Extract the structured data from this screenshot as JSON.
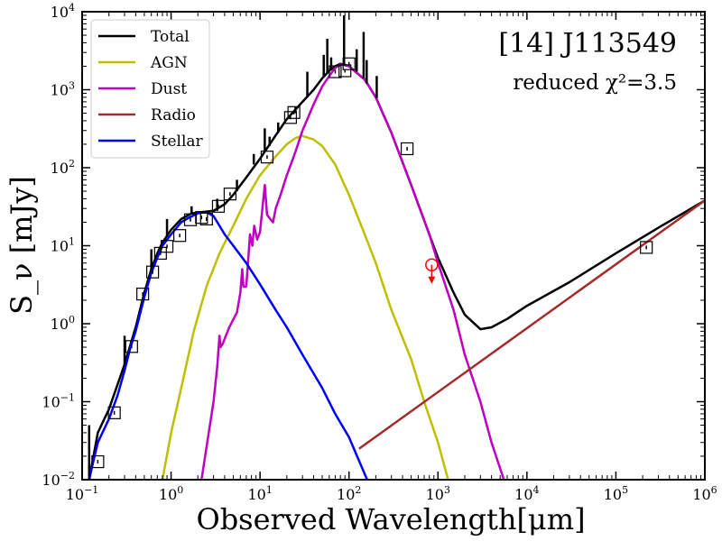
{
  "chart_data": {
    "type": "line",
    "title": "[14] J113549",
    "annotation": "reduced χ²=3.5",
    "xlabel": "Observed Wavelength[μm]",
    "ylabel": "S_ν [mJy]",
    "xscale": "log",
    "yscale": "log",
    "xlim": [
      0.1,
      1000000
    ],
    "ylim": [
      0.01,
      10000
    ],
    "x_ticks": [
      {
        "value": 0.1,
        "mant": "10",
        "exp": "−1"
      },
      {
        "value": 1,
        "mant": "10",
        "exp": "0"
      },
      {
        "value": 10,
        "mant": "10",
        "exp": "1"
      },
      {
        "value": 100,
        "mant": "10",
        "exp": "2"
      },
      {
        "value": 1000,
        "mant": "10",
        "exp": "3"
      },
      {
        "value": 10000,
        "mant": "10",
        "exp": "4"
      },
      {
        "value": 100000,
        "mant": "10",
        "exp": "5"
      },
      {
        "value": 1000000,
        "mant": "10",
        "exp": "6"
      }
    ],
    "y_ticks": [
      {
        "value": 0.01,
        "mant": "10",
        "exp": "−2"
      },
      {
        "value": 0.1,
        "mant": "10",
        "exp": "−1"
      },
      {
        "value": 1,
        "mant": "10",
        "exp": "0"
      },
      {
        "value": 10,
        "mant": "10",
        "exp": "1"
      },
      {
        "value": 100,
        "mant": "10",
        "exp": "2"
      },
      {
        "value": 1000,
        "mant": "10",
        "exp": "3"
      },
      {
        "value": 10000,
        "mant": "10",
        "exp": "4"
      }
    ],
    "legend": [
      {
        "label": "Total",
        "color": "#000000"
      },
      {
        "label": "AGN",
        "color": "#bfbf00"
      },
      {
        "label": "Dust",
        "color": "#bf00bf"
      },
      {
        "label": "Radio",
        "color": "#a52a2a"
      },
      {
        "label": "Stellar",
        "color": "#0000ff"
      }
    ],
    "series": [
      {
        "name": "Total",
        "color": "#000000",
        "points": [
          [
            0.12,
            0.01
          ],
          [
            0.15,
            0.04
          ],
          [
            0.2,
            0.08
          ],
          [
            0.3,
            0.3
          ],
          [
            0.4,
            0.9
          ],
          [
            0.5,
            2.5
          ],
          [
            0.6,
            5
          ],
          [
            0.7,
            8
          ],
          [
            0.8,
            11
          ],
          [
            1.0,
            16
          ],
          [
            1.3,
            22
          ],
          [
            1.7,
            26
          ],
          [
            2.2,
            27
          ],
          [
            3.0,
            28
          ],
          [
            4.0,
            34
          ],
          [
            5.0,
            45
          ],
          [
            7.0,
            75
          ],
          [
            10,
            130
          ],
          [
            15,
            260
          ],
          [
            20,
            420
          ],
          [
            30,
            700
          ],
          [
            40,
            1000
          ],
          [
            50,
            1400
          ],
          [
            60,
            1750
          ],
          [
            70,
            2000
          ],
          [
            80,
            2150
          ],
          [
            100,
            2000
          ],
          [
            150,
            1350
          ],
          [
            200,
            800
          ],
          [
            300,
            280
          ],
          [
            500,
            60
          ],
          [
            800,
            14
          ],
          [
            1000,
            7
          ],
          [
            1500,
            2.5
          ],
          [
            2000,
            1.3
          ],
          [
            3000,
            0.85
          ],
          [
            4000,
            0.9
          ],
          [
            6000,
            1.15
          ],
          [
            10000,
            1.7
          ],
          [
            30000,
            3.4
          ],
          [
            100000,
            8
          ],
          [
            300000,
            17
          ],
          [
            1000000,
            38
          ]
        ]
      },
      {
        "name": "AGN",
        "color": "#bfbf00",
        "points": [
          [
            0.8,
            0.01
          ],
          [
            1.0,
            0.04
          ],
          [
            1.3,
            0.15
          ],
          [
            1.8,
            0.8
          ],
          [
            2.5,
            3
          ],
          [
            3.5,
            8
          ],
          [
            5.0,
            18
          ],
          [
            7.0,
            40
          ],
          [
            10,
            80
          ],
          [
            15,
            140
          ],
          [
            20,
            200
          ],
          [
            25,
            240
          ],
          [
            30,
            255
          ],
          [
            40,
            230
          ],
          [
            50,
            190
          ],
          [
            70,
            110
          ],
          [
            100,
            45
          ],
          [
            150,
            14
          ],
          [
            200,
            6
          ],
          [
            300,
            1.5
          ],
          [
            500,
            0.35
          ],
          [
            700,
            0.1
          ],
          [
            1000,
            0.03
          ],
          [
            1300,
            0.01
          ]
        ]
      },
      {
        "name": "Dust",
        "color": "#bf00bf",
        "points": [
          [
            2.2,
            0.01
          ],
          [
            3.0,
            0.1
          ],
          [
            3.3,
            0.28
          ],
          [
            3.5,
            0.7
          ],
          [
            3.6,
            0.5
          ],
          [
            3.8,
            0.55
          ],
          [
            4.5,
            0.9
          ],
          [
            5.5,
            1.4
          ],
          [
            6.0,
            2.5
          ],
          [
            6.3,
            5
          ],
          [
            6.5,
            3
          ],
          [
            7.0,
            3
          ],
          [
            7.7,
            14
          ],
          [
            8.2,
            10
          ],
          [
            8.6,
            18
          ],
          [
            9.3,
            12
          ],
          [
            10,
            15
          ],
          [
            11.3,
            60
          ],
          [
            12,
            25
          ],
          [
            13,
            22
          ],
          [
            14,
            20
          ],
          [
            15,
            30
          ],
          [
            17,
            45
          ],
          [
            20,
            80
          ],
          [
            25,
            160
          ],
          [
            30,
            300
          ],
          [
            40,
            650
          ],
          [
            50,
            1100
          ],
          [
            60,
            1500
          ],
          [
            70,
            1900
          ],
          [
            80,
            2100
          ],
          [
            90,
            2100
          ],
          [
            100,
            2000
          ],
          [
            150,
            1350
          ],
          [
            200,
            800
          ],
          [
            300,
            280
          ],
          [
            500,
            60
          ],
          [
            800,
            14
          ],
          [
            1000,
            6
          ],
          [
            1500,
            1.5
          ],
          [
            2000,
            0.4
          ],
          [
            3000,
            0.1
          ],
          [
            4000,
            0.03
          ],
          [
            5500,
            0.01
          ]
        ]
      },
      {
        "name": "Radio",
        "color": "#a52a2a",
        "points": [
          [
            130,
            0.025
          ],
          [
            1000000,
            38
          ]
        ]
      },
      {
        "name": "Stellar",
        "color": "#0000ff",
        "points": [
          [
            0.12,
            0.01
          ],
          [
            0.13,
            0.015
          ],
          [
            0.15,
            0.03
          ],
          [
            0.2,
            0.06
          ],
          [
            0.25,
            0.12
          ],
          [
            0.3,
            0.25
          ],
          [
            0.35,
            0.5
          ],
          [
            0.4,
            0.8
          ],
          [
            0.5,
            2.2
          ],
          [
            0.6,
            4.5
          ],
          [
            0.7,
            7
          ],
          [
            0.8,
            10
          ],
          [
            1.0,
            14
          ],
          [
            1.3,
            20
          ],
          [
            1.6,
            23
          ],
          [
            2.0,
            26
          ],
          [
            2.5,
            27
          ],
          [
            3.0,
            24
          ],
          [
            3.5,
            18
          ],
          [
            4.0,
            14
          ],
          [
            5.0,
            10
          ],
          [
            7.0,
            6
          ],
          [
            10,
            3.2
          ],
          [
            15,
            1.5
          ],
          [
            20,
            0.9
          ],
          [
            30,
            0.4
          ],
          [
            50,
            0.15
          ],
          [
            70,
            0.07
          ],
          [
            100,
            0.035
          ],
          [
            160,
            0.01
          ]
        ]
      }
    ],
    "spikes": [
      {
        "x": 0.12,
        "y0": 0.01,
        "y1": 0.05
      },
      {
        "x": 0.3,
        "y0": 0.3,
        "y1": 0.7
      },
      {
        "x": 0.6,
        "y0": 5,
        "y1": 9
      },
      {
        "x": 0.9,
        "y0": 13,
        "y1": 22
      },
      {
        "x": 1.7,
        "y0": 26,
        "y1": 32
      },
      {
        "x": 3.3,
        "y0": 28,
        "y1": 40
      },
      {
        "x": 5.5,
        "y0": 50,
        "y1": 70
      },
      {
        "x": 8.5,
        "y0": 110,
        "y1": 150
      },
      {
        "x": 11.3,
        "y0": 160,
        "y1": 320
      },
      {
        "x": 12.8,
        "y0": 190,
        "y1": 250
      },
      {
        "x": 16,
        "y0": 280,
        "y1": 380
      },
      {
        "x": 25,
        "y0": 500,
        "y1": 600
      },
      {
        "x": 34,
        "y0": 800,
        "y1": 1700
      },
      {
        "x": 52,
        "y0": 1450,
        "y1": 2800
      },
      {
        "x": 57,
        "y0": 1600,
        "y1": 4500
      },
      {
        "x": 63,
        "y0": 1800,
        "y1": 2600
      },
      {
        "x": 88,
        "y0": 2100,
        "y1": 9000
      },
      {
        "x": 122,
        "y0": 1700,
        "y1": 3300
      },
      {
        "x": 146,
        "y0": 1400,
        "y1": 5500
      },
      {
        "x": 158,
        "y0": 1200,
        "y1": 2400
      },
      {
        "x": 205,
        "y0": 780,
        "y1": 1500
      }
    ],
    "photometry": [
      {
        "x": 0.15,
        "y": 0.017
      },
      {
        "x": 0.23,
        "y": 0.072
      },
      {
        "x": 0.36,
        "y": 0.51
      },
      {
        "x": 0.48,
        "y": 2.4
      },
      {
        "x": 0.62,
        "y": 4.6
      },
      {
        "x": 0.76,
        "y": 8.0
      },
      {
        "x": 0.9,
        "y": 9.8
      },
      {
        "x": 1.25,
        "y": 13.5
      },
      {
        "x": 1.65,
        "y": 21.5
      },
      {
        "x": 2.2,
        "y": 23.0
      },
      {
        "x": 2.5,
        "y": 22.0
      },
      {
        "x": 3.4,
        "y": 32.0
      },
      {
        "x": 4.6,
        "y": 46.0
      },
      {
        "x": 12,
        "y": 137
      },
      {
        "x": 22,
        "y": 440
      },
      {
        "x": 24,
        "y": 510
      },
      {
        "x": 70,
        "y": 1700
      },
      {
        "x": 90,
        "y": 1750
      },
      {
        "x": 100,
        "y": 2150
      },
      {
        "x": 450,
        "y": 175
      },
      {
        "x": 220000,
        "y": 9.5
      }
    ],
    "upper_limit": {
      "x": 850,
      "y": 6,
      "color": "#ff0000"
    }
  }
}
